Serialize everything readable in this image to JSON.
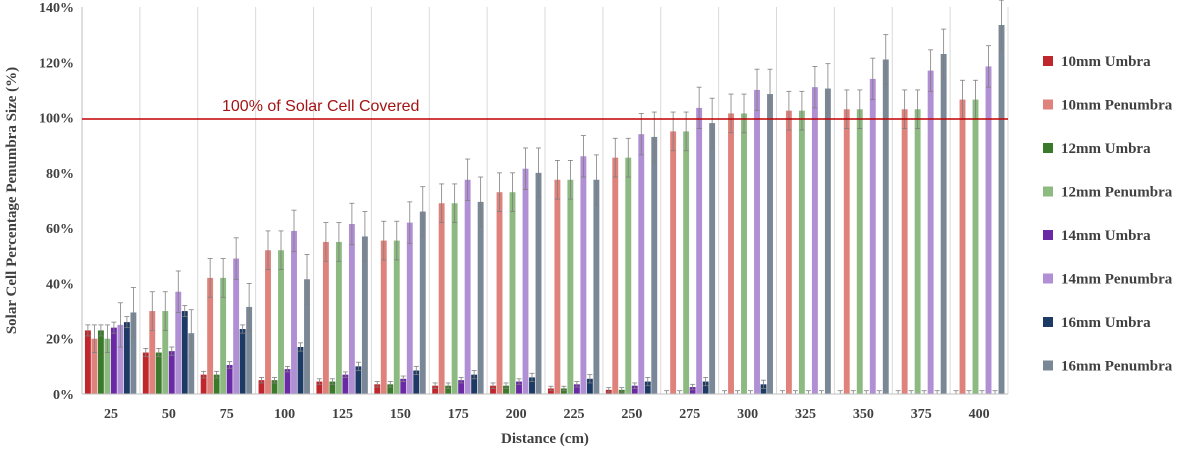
{
  "chart_data": {
    "type": "bar",
    "xlabel": "Distance (cm)",
    "ylabel": "Solar Cell Percentage Penumbra Size (%)",
    "ylim": [
      0,
      140
    ],
    "yticks": [
      0,
      20,
      40,
      60,
      80,
      100,
      120,
      140
    ],
    "ytick_labels": [
      "0%",
      "20%",
      "40%",
      "60%",
      "80%",
      "100%",
      "120%",
      "140%"
    ],
    "grid": "vertical-category-dividers",
    "legend_position": "right",
    "categories": [
      "25",
      "50",
      "75",
      "100",
      "125",
      "150",
      "175",
      "200",
      "225",
      "250",
      "275",
      "300",
      "325",
      "350",
      "375",
      "400"
    ],
    "reference_line": {
      "value": 99.5,
      "label": "100% of Solar Cell Covered",
      "color": "#c00000"
    },
    "series": [
      {
        "name": "10mm Umbra",
        "color": "#c0272d",
        "values": [
          23,
          15,
          7,
          5,
          4.5,
          3.5,
          3,
          3,
          2,
          1.5,
          0,
          0,
          0,
          0,
          0,
          0
        ],
        "errors": [
          2,
          1.5,
          1.2,
          1,
          1,
          1,
          1,
          1,
          0.8,
          0.8,
          1.2,
          1.2,
          1.2,
          1.2,
          1.2,
          1.2
        ]
      },
      {
        "name": "10mm Penumbra",
        "color": "#e0827c",
        "values": [
          20,
          30,
          42,
          52,
          55,
          55.5,
          69,
          73,
          77.5,
          85.5,
          95,
          101.5,
          102.5,
          103,
          103,
          106.5
        ],
        "errors": [
          5,
          7,
          7,
          7,
          7,
          7,
          7,
          7,
          7,
          7,
          7,
          7,
          7,
          7,
          7,
          7
        ]
      },
      {
        "name": "12mm Umbra",
        "color": "#3a7a2a",
        "values": [
          23,
          15,
          7,
          5,
          4.5,
          3.5,
          3,
          3,
          2,
          1.5,
          0,
          0,
          0,
          0,
          0,
          0
        ],
        "errors": [
          2,
          1.5,
          1.2,
          1,
          1,
          1,
          1,
          1,
          0.8,
          0.8,
          1.2,
          1.2,
          1.2,
          1.2,
          1.2,
          1.2
        ]
      },
      {
        "name": "12mm Penumbra",
        "color": "#8cba80",
        "values": [
          20,
          30,
          42,
          52,
          55,
          55.5,
          69,
          73,
          77.5,
          85.5,
          95,
          101.5,
          102.5,
          103,
          103,
          106.5
        ],
        "errors": [
          5,
          7,
          7,
          7,
          7,
          7,
          7,
          7,
          7,
          7,
          7,
          7,
          7,
          7,
          7,
          7
        ]
      },
      {
        "name": "14mm Umbra",
        "color": "#6a2aa5",
        "values": [
          24,
          15.5,
          10.5,
          9,
          7,
          5.5,
          5,
          4.5,
          3.5,
          3,
          2.5,
          0,
          0,
          0,
          0,
          0
        ],
        "errors": [
          2,
          1.5,
          1.2,
          1,
          1,
          1,
          1,
          1,
          1,
          1,
          1,
          1.2,
          1.2,
          1.2,
          1.2,
          1.2
        ]
      },
      {
        "name": "14mm Penumbra",
        "color": "#b08fd4",
        "values": [
          25,
          37,
          49,
          59,
          61.5,
          62,
          77.5,
          81.5,
          86,
          94,
          103.5,
          110,
          111,
          114,
          117,
          118.5
        ],
        "errors": [
          8,
          7.5,
          7.5,
          7.5,
          7.5,
          7.5,
          7.5,
          7.5,
          7.5,
          7.5,
          7.5,
          7.5,
          7.5,
          7.5,
          7.5,
          7.5
        ]
      },
      {
        "name": "16mm Umbra",
        "color": "#1c3a63",
        "values": [
          26,
          30,
          23.5,
          17,
          10,
          8.5,
          7,
          6,
          5.5,
          4.5,
          4.5,
          3.5,
          0,
          0,
          0,
          0
        ],
        "errors": [
          2,
          2,
          1.5,
          1.5,
          1.5,
          1.5,
          1.5,
          1.5,
          1.5,
          1.5,
          1.5,
          1.5,
          1.2,
          1.2,
          1.2,
          1.2
        ]
      },
      {
        "name": "16mm Penumbra",
        "color": "#7a8796",
        "values": [
          29.5,
          22,
          31.5,
          41.5,
          57,
          66,
          69.5,
          80,
          77.5,
          93,
          98,
          108.5,
          110.5,
          121,
          123,
          133.5
        ],
        "errors": [
          9,
          8.5,
          8.5,
          9,
          9,
          9,
          9,
          9,
          9,
          9,
          9,
          9,
          9,
          9,
          9,
          9
        ]
      }
    ]
  }
}
